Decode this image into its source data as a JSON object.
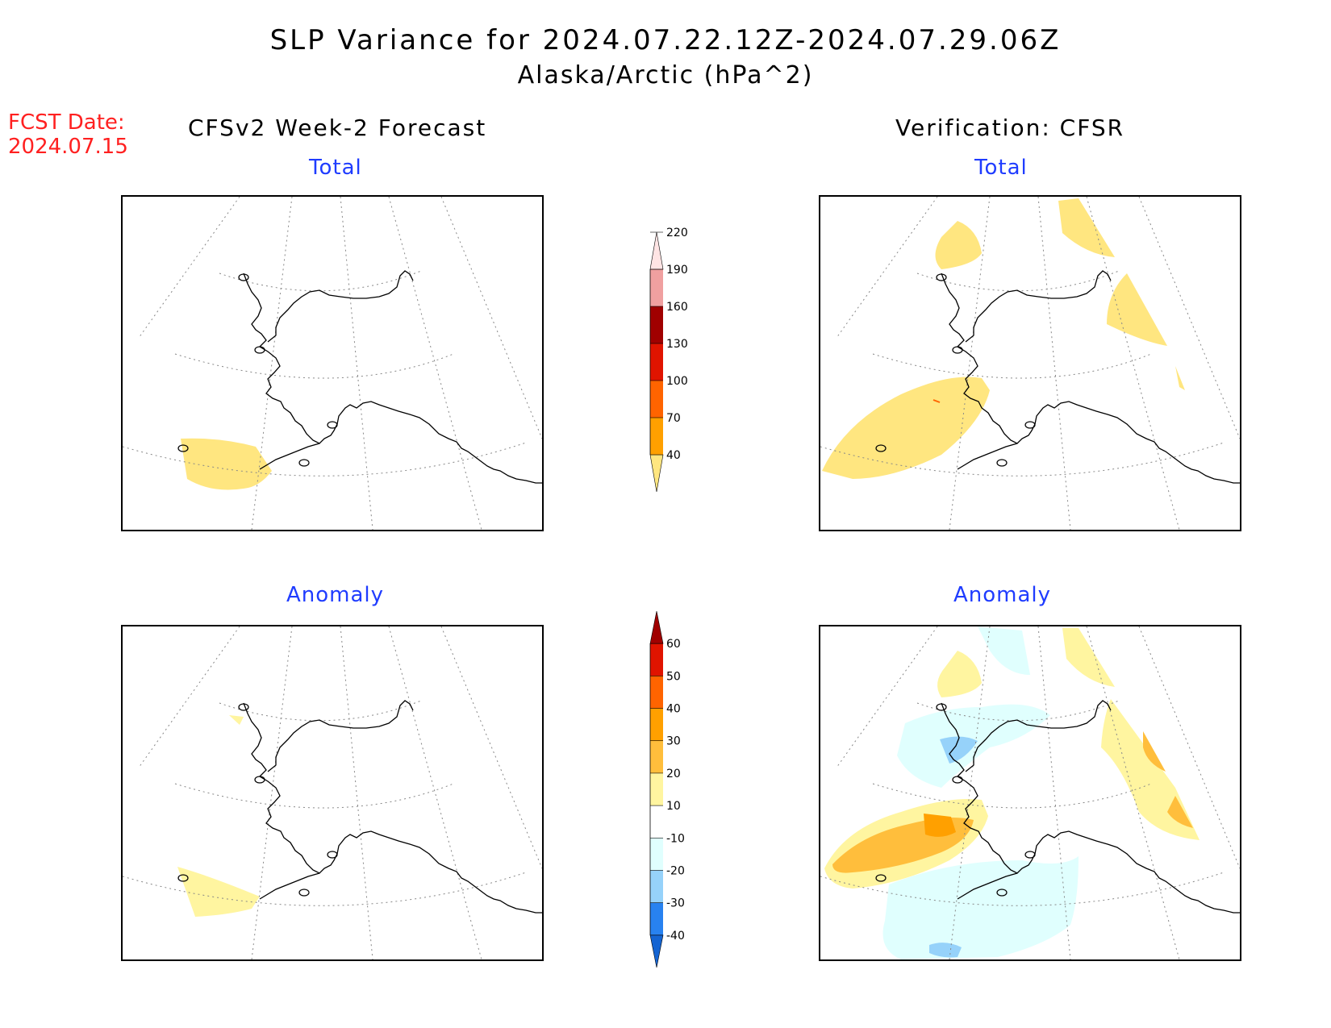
{
  "header": {
    "title": "SLP Variance for 2024.07.22.12Z-2024.07.29.06Z",
    "subtitle": "Alaska/Arctic (hPa^2)"
  },
  "fcst_date": {
    "label": "FCST Date:",
    "value": "2024.07.15"
  },
  "columns": {
    "left_title": "CFSv2 Week-2 Forecast",
    "right_title": "Verification: CFSR"
  },
  "panels": {
    "forecast_total": {
      "title": "Total"
    },
    "verification_total": {
      "title": "Total"
    },
    "forecast_anomaly": {
      "title": "Anomaly"
    },
    "verification_anomaly": {
      "title": "Anomaly"
    }
  },
  "colorbars": {
    "total": {
      "levels": [
        "40",
        "70",
        "100",
        "130",
        "160",
        "190",
        "220"
      ],
      "colors": [
        "#ffe680",
        "#ffa000",
        "#ff6400",
        "#e01400",
        "#a00000",
        "#f0a0a0",
        "#ffe4e4"
      ]
    },
    "anomaly": {
      "levels": [
        "-40",
        "-30",
        "-20",
        "-10",
        "10",
        "20",
        "30",
        "40",
        "50",
        "60"
      ],
      "colors": [
        "#1464d2",
        "#2882f0",
        "#96d2fa",
        "#e0fffe",
        "#ffffff",
        "#fff5a0",
        "#ffbe3c",
        "#ffa000",
        "#ff6400",
        "#e01400",
        "#a00000"
      ]
    }
  },
  "colors": {
    "title_red": "#ff2020",
    "panel_title_blue": "#1f3cff",
    "fill_light_yellow": "#ffe680",
    "fill_pale_yellow": "#fff5a0",
    "fill_light_orange": "#ffbe3c",
    "fill_orange": "#ffa000",
    "fill_light_cyan": "#e0fffe",
    "fill_light_blue": "#96d2fa"
  }
}
